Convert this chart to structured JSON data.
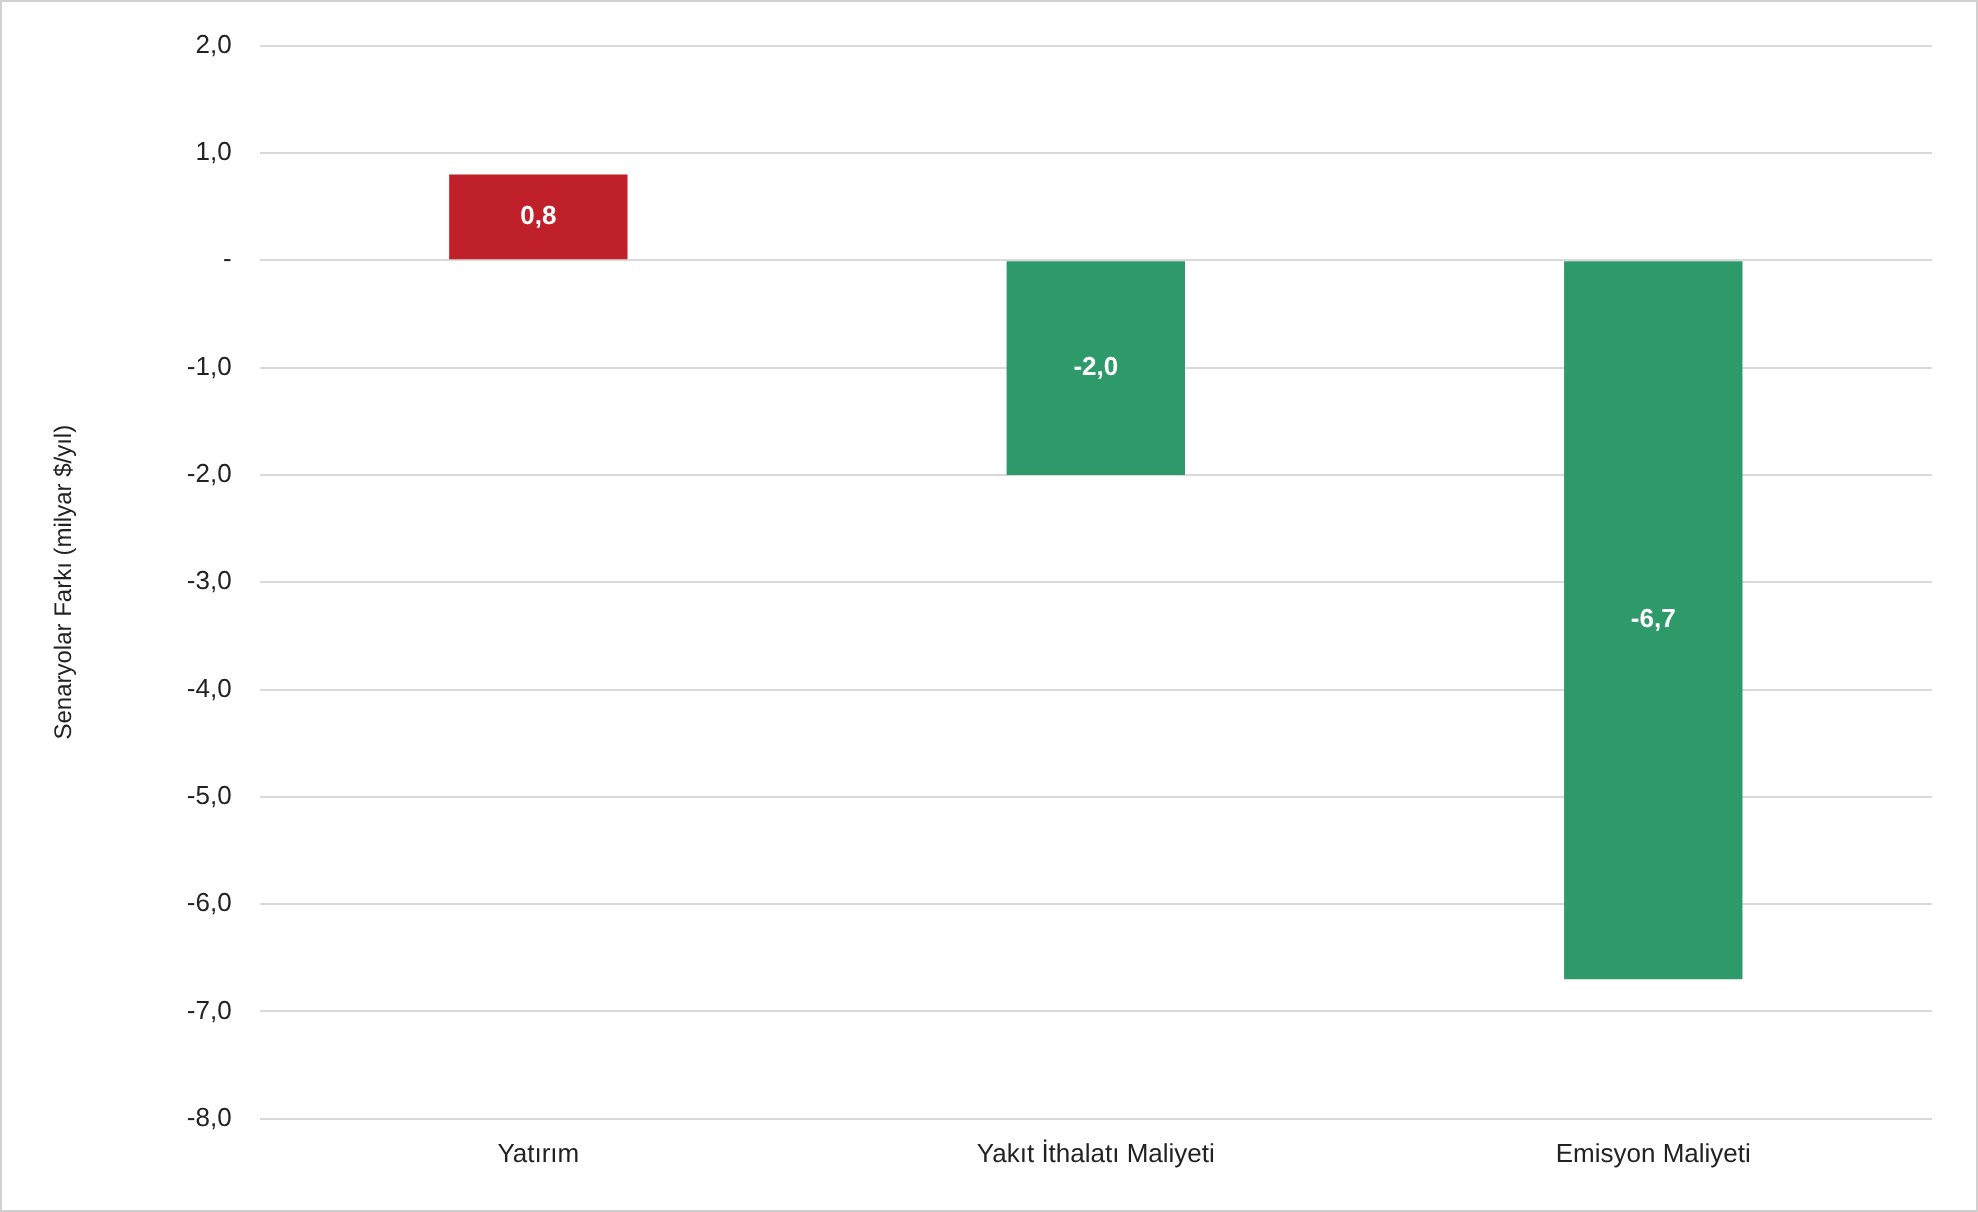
{
  "chart_data": {
    "type": "bar",
    "ylabel": "Senaryolar Farkı (milyar $/yıl)",
    "categories": [
      "Yatırım",
      "Yakıt İthalatı Maliyeti",
      "Emisyon Maliyeti"
    ],
    "values": [
      0.8,
      -2.0,
      -6.7
    ],
    "colors": [
      "#c0202a",
      "#2e9a6a",
      "#2e9a6a"
    ],
    "value_labels": [
      "0,8",
      "-2,0",
      "-6,7"
    ],
    "ylim": [
      -8,
      2
    ],
    "yticks": [
      {
        "value": 2,
        "label": "2,0"
      },
      {
        "value": 1,
        "label": "1,0"
      },
      {
        "value": 0,
        "label": "-"
      },
      {
        "value": -1,
        "label": "-1,0"
      },
      {
        "value": -2,
        "label": "-2,0"
      },
      {
        "value": -3,
        "label": "-3,0"
      },
      {
        "value": -4,
        "label": "-4,0"
      },
      {
        "value": -5,
        "label": "-5,0"
      },
      {
        "value": -6,
        "label": "-6,0"
      },
      {
        "value": -7,
        "label": "-7,0"
      },
      {
        "value": -8,
        "label": "-8,0"
      }
    ],
    "grid": "y",
    "legend": false
  }
}
